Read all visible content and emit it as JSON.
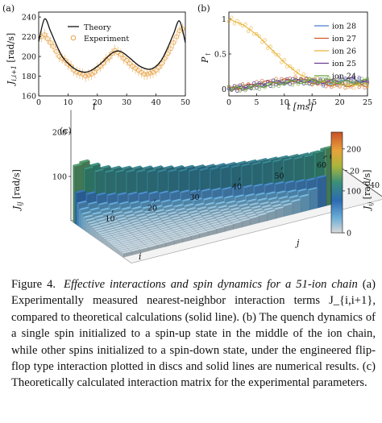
{
  "colors": {
    "theory_line": "#111111",
    "experiment_marker": "#e8a54a",
    "ion28": "#4a7fc9",
    "ion27": "#d0582c",
    "ion26": "#e8b53a",
    "ion25": "#6a3d8f",
    "ion24": "#6aa343"
  },
  "panel_a": {
    "label": "(a)",
    "ylabel": "J_{i,i+1} [rad/s]",
    "ylabel_main": "J",
    "ylabel_sub": "i,i+1",
    "ylabel_unit": " [rad/s]",
    "xlabel": "i",
    "legend_theory": "Theory",
    "legend_experiment": "Experiment",
    "xticks": [
      "0",
      "10",
      "20",
      "30",
      "40",
      "50"
    ],
    "yticks": [
      "160",
      "180",
      "200",
      "220",
      "240"
    ]
  },
  "panel_b": {
    "label": "(b)",
    "ylabel": "P↑",
    "ylabel_main": "P",
    "ylabel_sub": "↑",
    "xlabel": "t [ms]",
    "xticks": [
      "0",
      "5",
      "10",
      "15",
      "20",
      "25"
    ],
    "yticks": [
      "0",
      "0.5",
      "1"
    ],
    "legend": [
      "ion 28",
      "ion 27",
      "ion 26",
      "ion 25",
      "ion 24"
    ]
  },
  "panel_c": {
    "label": "(c)",
    "zlabel": "J_{ij} [rad/s]",
    "zlabel_main": "J",
    "zlabel_sub": "ij",
    "zlabel_unit": " [rad/s]",
    "xlabel": "i",
    "ylabel": "j",
    "xticks": [
      "10",
      "20",
      "30",
      "40",
      "50",
      "60"
    ],
    "yticks": [
      "0",
      "20",
      "40",
      "60"
    ],
    "zticks": [
      "100",
      "200"
    ],
    "colorbar_ticks": [
      "200",
      "100",
      "0"
    ],
    "colorbar_label_main": "J",
    "colorbar_label_sub": "ij",
    "colorbar_label_unit": " [rad/s]"
  },
  "chart_data": [
    {
      "type": "line",
      "panel": "(a)",
      "xlabel": "i",
      "ylabel": "J_{i,i+1} [rad/s]",
      "xlim": [
        0,
        50
      ],
      "ylim": [
        160,
        245
      ],
      "series": [
        {
          "name": "Theory",
          "x": [
            0,
            2,
            4,
            6,
            8,
            10,
            12,
            14,
            16,
            18,
            20,
            22,
            24,
            26,
            28,
            30,
            32,
            34,
            36,
            38,
            40,
            42,
            44,
            46,
            48,
            50
          ],
          "values": [
            215,
            238,
            226,
            212,
            200,
            193,
            188,
            185,
            184,
            186,
            190,
            195,
            201,
            205,
            205,
            201,
            196,
            191,
            188,
            187,
            190,
            197,
            209,
            223,
            236,
            214
          ]
        },
        {
          "name": "Experiment",
          "x": [
            1,
            2,
            3,
            4,
            5,
            6,
            7,
            8,
            9,
            10,
            11,
            12,
            13,
            14,
            15,
            16,
            17,
            18,
            19,
            20,
            21,
            22,
            23,
            24,
            25,
            26,
            27,
            28,
            29,
            30,
            31,
            32,
            33,
            34,
            35,
            36,
            37,
            38,
            39,
            40,
            41,
            42,
            43,
            44,
            45,
            46,
            47,
            48,
            49
          ],
          "values": [
            220,
            222,
            218,
            214,
            210,
            205,
            200,
            198,
            196,
            192,
            190,
            186,
            184,
            183,
            182,
            180,
            181,
            182,
            184,
            188,
            190,
            193,
            197,
            199,
            203,
            206,
            204,
            202,
            198,
            196,
            193,
            190,
            188,
            186,
            184,
            182,
            182,
            183,
            184,
            186,
            189,
            193,
            198,
            203,
            208,
            214,
            220,
            226,
            228
          ]
        }
      ]
    },
    {
      "type": "line",
      "panel": "(b)",
      "xlabel": "t [ms]",
      "ylabel": "P↑",
      "xlim": [
        0,
        25
      ],
      "ylim": [
        -0.1,
        1.1
      ],
      "legend_position": "top-right",
      "series": [
        {
          "name": "ion 28",
          "x": [
            0,
            2.5,
            5,
            7.5,
            10,
            12.5,
            15,
            17.5,
            20,
            22.5,
            25
          ],
          "values": [
            0,
            0.02,
            0.05,
            0.08,
            0.1,
            0.12,
            0.1,
            0.08,
            0.1,
            0.12,
            0.08
          ]
        },
        {
          "name": "ion 27",
          "x": [
            0,
            2.5,
            5,
            7.5,
            10,
            12.5,
            15,
            17.5,
            20,
            22.5,
            25
          ],
          "values": [
            0,
            0.03,
            0.07,
            0.1,
            0.12,
            0.13,
            0.1,
            0.07,
            0.05,
            0.06,
            0.05
          ]
        },
        {
          "name": "ion 26",
          "x": [
            0,
            2.5,
            5,
            7.5,
            10,
            12.5,
            15,
            17.5,
            20,
            22.5,
            25
          ],
          "values": [
            1,
            0.92,
            0.78,
            0.58,
            0.38,
            0.22,
            0.12,
            0.1,
            0.07,
            0.05,
            0.08
          ]
        },
        {
          "name": "ion 25",
          "x": [
            0,
            2.5,
            5,
            7.5,
            10,
            12.5,
            15,
            17.5,
            20,
            22.5,
            25
          ],
          "values": [
            0,
            0.02,
            0.05,
            0.08,
            0.1,
            0.12,
            0.11,
            0.1,
            0.12,
            0.14,
            0.1
          ]
        },
        {
          "name": "ion 24",
          "x": [
            0,
            2.5,
            5,
            7.5,
            10,
            12.5,
            15,
            17.5,
            20,
            22.5,
            25
          ],
          "values": [
            0,
            0.01,
            0.03,
            0.06,
            0.09,
            0.1,
            0.11,
            0.12,
            0.1,
            0.09,
            0.12
          ]
        }
      ]
    },
    {
      "type": "heatmap",
      "panel": "(c)",
      "xlabel": "i",
      "ylabel": "j",
      "zlabel": "J_{ij} [rad/s]",
      "xlim": [
        0,
        60
      ],
      "ylim": [
        0,
        60
      ],
      "zlim": [
        0,
        250
      ],
      "colorbar_range": [
        0,
        240
      ],
      "nearest_neighbor_peak": 240,
      "center_value": 205
    }
  ],
  "caption": {
    "label": "Figure 4.",
    "title": "Effective interactions and spin dynamics for a 51-ion chain",
    "body": " (a) Experimentally measured nearest-neighbor interaction terms J_{i,i+1}, compared to theoretical calculations (solid line). (b) The quench dynamics of a single spin initialized to a spin-up state in the middle of the ion chain, while other spins initialized to a spin-down state, under the engineered flip-flop type interaction plotted in discs and solid lines are numerical results. (c) Theoretically calculated interaction matrix for the experimental parameters."
  }
}
